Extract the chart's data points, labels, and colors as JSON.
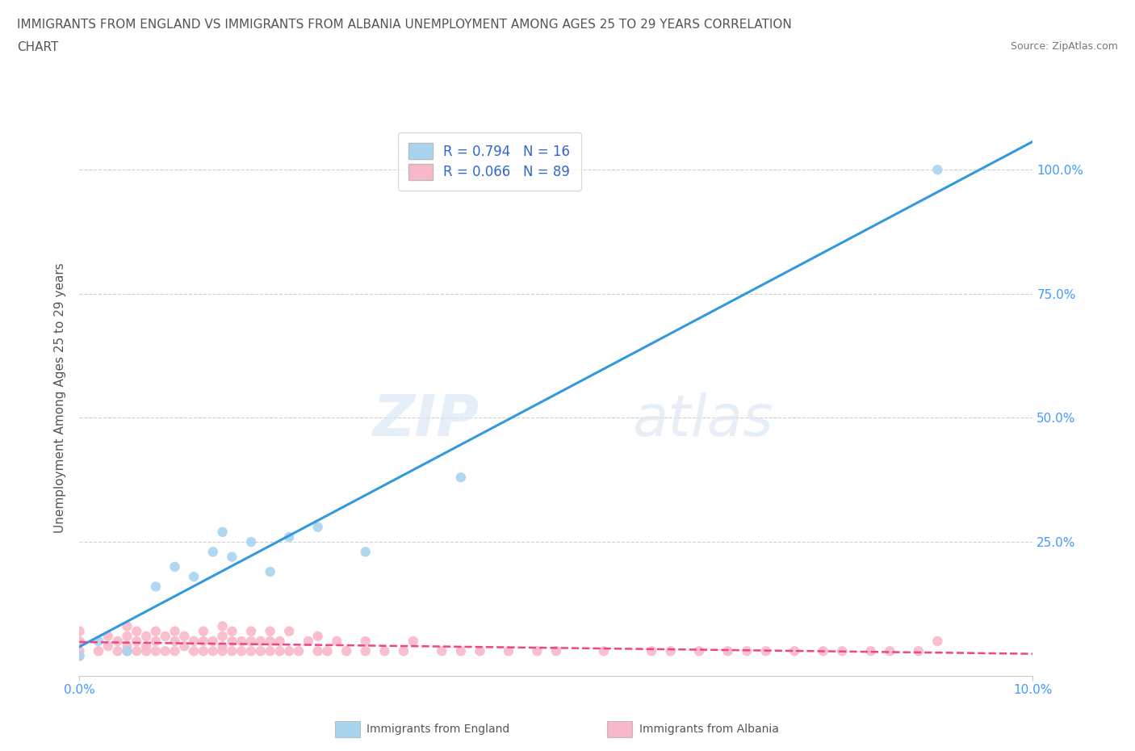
{
  "title_line1": "IMMIGRANTS FROM ENGLAND VS IMMIGRANTS FROM ALBANIA UNEMPLOYMENT AMONG AGES 25 TO 29 YEARS CORRELATION",
  "title_line2": "CHART",
  "source_text": "Source: ZipAtlas.com",
  "ylabel": "Unemployment Among Ages 25 to 29 years",
  "xlim": [
    0.0,
    0.1
  ],
  "ylim": [
    -0.02,
    1.1
  ],
  "england_R": 0.794,
  "england_N": 16,
  "albania_R": 0.066,
  "albania_N": 89,
  "england_color": "#a8d4f0",
  "albania_color": "#f9b8c8",
  "england_line_color": "#3399dd",
  "albania_line_color": "#ee4488",
  "watermark_zip": "ZIP",
  "watermark_atlas": "atlas",
  "england_scatter_x": [
    0.0,
    0.002,
    0.005,
    0.008,
    0.01,
    0.012,
    0.014,
    0.015,
    0.016,
    0.018,
    0.02,
    0.022,
    0.025,
    0.03,
    0.04,
    0.09
  ],
  "england_scatter_y": [
    0.02,
    0.05,
    0.03,
    0.16,
    0.2,
    0.18,
    0.23,
    0.27,
    0.22,
    0.25,
    0.19,
    0.26,
    0.28,
    0.23,
    0.38,
    1.0
  ],
  "albania_scatter_x": [
    0.0,
    0.0,
    0.0,
    0.0,
    0.002,
    0.003,
    0.003,
    0.004,
    0.004,
    0.005,
    0.005,
    0.005,
    0.005,
    0.006,
    0.006,
    0.006,
    0.007,
    0.007,
    0.007,
    0.008,
    0.008,
    0.008,
    0.009,
    0.009,
    0.01,
    0.01,
    0.01,
    0.011,
    0.011,
    0.012,
    0.012,
    0.013,
    0.013,
    0.013,
    0.014,
    0.014,
    0.015,
    0.015,
    0.015,
    0.015,
    0.016,
    0.016,
    0.016,
    0.017,
    0.017,
    0.018,
    0.018,
    0.018,
    0.019,
    0.019,
    0.02,
    0.02,
    0.02,
    0.021,
    0.021,
    0.022,
    0.022,
    0.023,
    0.024,
    0.025,
    0.025,
    0.026,
    0.027,
    0.028,
    0.03,
    0.03,
    0.032,
    0.034,
    0.035,
    0.038,
    0.04,
    0.042,
    0.045,
    0.048,
    0.05,
    0.055,
    0.06,
    0.062,
    0.065,
    0.068,
    0.07,
    0.072,
    0.075,
    0.078,
    0.08,
    0.083,
    0.085,
    0.088,
    0.09
  ],
  "albania_scatter_y": [
    0.02,
    0.03,
    0.05,
    0.07,
    0.03,
    0.04,
    0.06,
    0.03,
    0.05,
    0.03,
    0.04,
    0.06,
    0.08,
    0.03,
    0.05,
    0.07,
    0.03,
    0.04,
    0.06,
    0.03,
    0.05,
    0.07,
    0.03,
    0.06,
    0.03,
    0.05,
    0.07,
    0.04,
    0.06,
    0.03,
    0.05,
    0.03,
    0.05,
    0.07,
    0.03,
    0.05,
    0.03,
    0.04,
    0.06,
    0.08,
    0.03,
    0.05,
    0.07,
    0.03,
    0.05,
    0.03,
    0.05,
    0.07,
    0.03,
    0.05,
    0.03,
    0.05,
    0.07,
    0.03,
    0.05,
    0.03,
    0.07,
    0.03,
    0.05,
    0.03,
    0.06,
    0.03,
    0.05,
    0.03,
    0.03,
    0.05,
    0.03,
    0.03,
    0.05,
    0.03,
    0.03,
    0.03,
    0.03,
    0.03,
    0.03,
    0.03,
    0.03,
    0.03,
    0.03,
    0.03,
    0.03,
    0.03,
    0.03,
    0.03,
    0.03,
    0.03,
    0.03,
    0.03,
    0.05
  ],
  "background_color": "#ffffff",
  "grid_color": "#cccccc",
  "title_color": "#555555",
  "axis_label_color": "#555555",
  "tick_label_color": "#4499ff",
  "legend_label_color": "#3366cc"
}
